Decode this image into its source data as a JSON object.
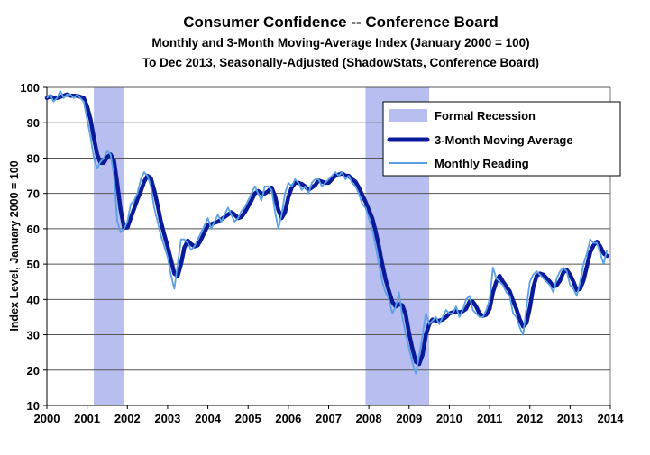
{
  "chart_data": {
    "type": "line",
    "title": "Consumer Confidence -- Conference Board",
    "subtitle_1": "Monthly and 3-Month Moving-Average Index (January 2000 = 100)",
    "subtitle_2": "To Dec 2013, Seasonally-Adjusted (ShadowStats, Conference Board)",
    "ylabel": "Index Level, January 2000 = 100",
    "xlabel": "",
    "ylim": [
      10,
      100
    ],
    "xlim": [
      2000,
      2014
    ],
    "yticks": [
      "10",
      "20",
      "30",
      "40",
      "50",
      "60",
      "70",
      "80",
      "90",
      "100"
    ],
    "xticks": [
      "2000",
      "2001",
      "2002",
      "2003",
      "2004",
      "2005",
      "2006",
      "2007",
      "2008",
      "2009",
      "2010",
      "2011",
      "2012",
      "2013",
      "2014"
    ],
    "grid": "horizontal",
    "legend_position": "top-right",
    "colors": {
      "recession": "#b8bff0",
      "moving_average": "#0a1a9a",
      "monthly": "#5aa0e6"
    },
    "recessions": [
      {
        "start": "2001-03",
        "end": "2001-11"
      },
      {
        "start": "2007-12",
        "end": "2009-06"
      }
    ],
    "legend": {
      "recession": "Formal Recession",
      "moving_average": "3-Month Moving Average",
      "monthly": "Monthly Reading"
    },
    "series": [
      {
        "name": "Monthly Reading",
        "start": "2000-01",
        "frequency": "monthly",
        "values": [
          97,
          98,
          96,
          97,
          99,
          97,
          98,
          98,
          97,
          98,
          97,
          96,
          91,
          86,
          80,
          77,
          79,
          80,
          82,
          81,
          75,
          62,
          59,
          60,
          62,
          67,
          68,
          70,
          74,
          76,
          75,
          72,
          66,
          62,
          58,
          55,
          52,
          47,
          43,
          50,
          57,
          57,
          56,
          54,
          55,
          57,
          59,
          61,
          63,
          60,
          62,
          64,
          62,
          64,
          66,
          64,
          62,
          63,
          65,
          66,
          68,
          70,
          72,
          70,
          68,
          72,
          72,
          71,
          65,
          60,
          64,
          70,
          73,
          72,
          74,
          73,
          71,
          72,
          70,
          73,
          74,
          74,
          72,
          73,
          74,
          75,
          76,
          75,
          76,
          74,
          75,
          73,
          72,
          70,
          67,
          66,
          63,
          60,
          55,
          50,
          45,
          42,
          40,
          36,
          38,
          42,
          35,
          30,
          26,
          22,
          19,
          24,
          30,
          36,
          33,
          34,
          35,
          33,
          35,
          37,
          36,
          36,
          38,
          35,
          37,
          40,
          41,
          37,
          36,
          35,
          35,
          37,
          40,
          49,
          46,
          45,
          44,
          42,
          41,
          36,
          35,
          32,
          30,
          38,
          45,
          47,
          48,
          47,
          46,
          45,
          44,
          42,
          46,
          48,
          49,
          48,
          44,
          43,
          41,
          45,
          50,
          53,
          57,
          56,
          56,
          53,
          50,
          54
        ]
      },
      {
        "name": "3-Month Moving Average",
        "derived_from": "Monthly Reading",
        "window": 3
      }
    ]
  }
}
